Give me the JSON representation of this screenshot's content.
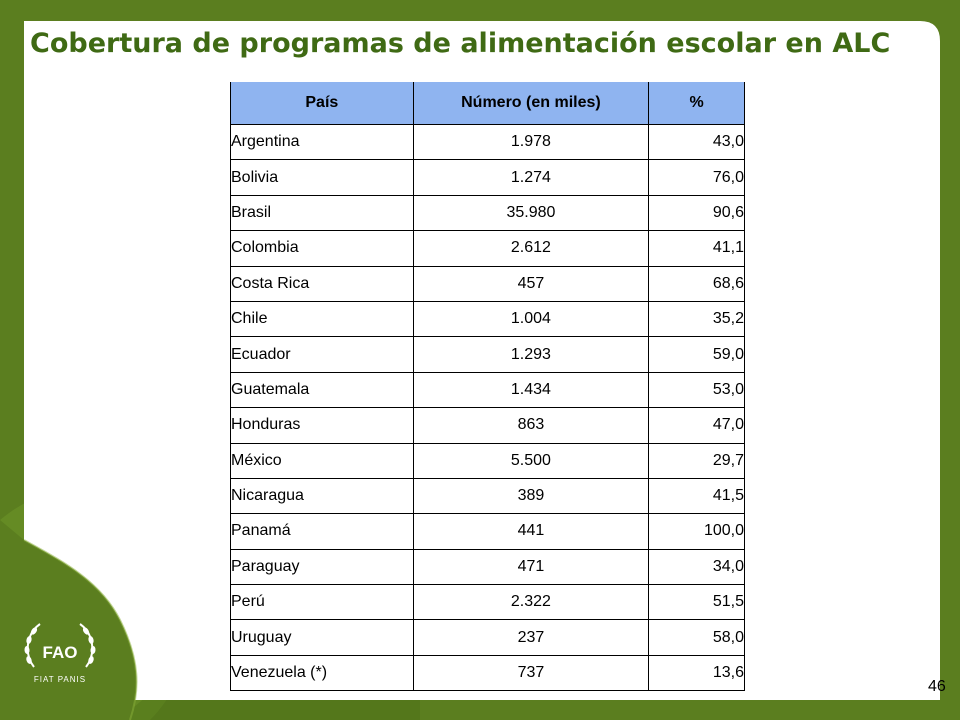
{
  "slide": {
    "title": "Cobertura de programas de alimentación escolar en ALC",
    "page_number": "46"
  },
  "colors": {
    "background_green": "#5b7e1f",
    "title_green": "#3f6a14",
    "header_blue": "#8fb4f0"
  },
  "logo": {
    "icon": "fao-logo",
    "top_text": "FAO",
    "bottom_text": "FIAT PANIS"
  },
  "table": {
    "headers": [
      "País",
      "Número (en miles)",
      "%"
    ],
    "rows": [
      [
        "Argentina",
        "1.978",
        "43,0"
      ],
      [
        "Bolivia",
        "1.274",
        "76,0"
      ],
      [
        "Brasil",
        "35.980",
        "90,6"
      ],
      [
        "Colombia",
        "2.612",
        "41,1"
      ],
      [
        "Costa Rica",
        "457",
        "68,6"
      ],
      [
        "Chile",
        "1.004",
        "35,2"
      ],
      [
        "Ecuador",
        "1.293",
        "59,0"
      ],
      [
        "Guatemala",
        "1.434",
        "53,0"
      ],
      [
        "Honduras",
        "863",
        "47,0"
      ],
      [
        "México",
        "5.500",
        "29,7"
      ],
      [
        "Nicaragua",
        "389",
        "41,5"
      ],
      [
        "Panamá",
        "441",
        "100,0"
      ],
      [
        "Paraguay",
        "471",
        "34,0"
      ],
      [
        "Perú",
        "2.322",
        "51,5"
      ],
      [
        "Uruguay",
        "237",
        "58,0"
      ],
      [
        "Venezuela (*)",
        "737",
        "13,6"
      ]
    ]
  }
}
